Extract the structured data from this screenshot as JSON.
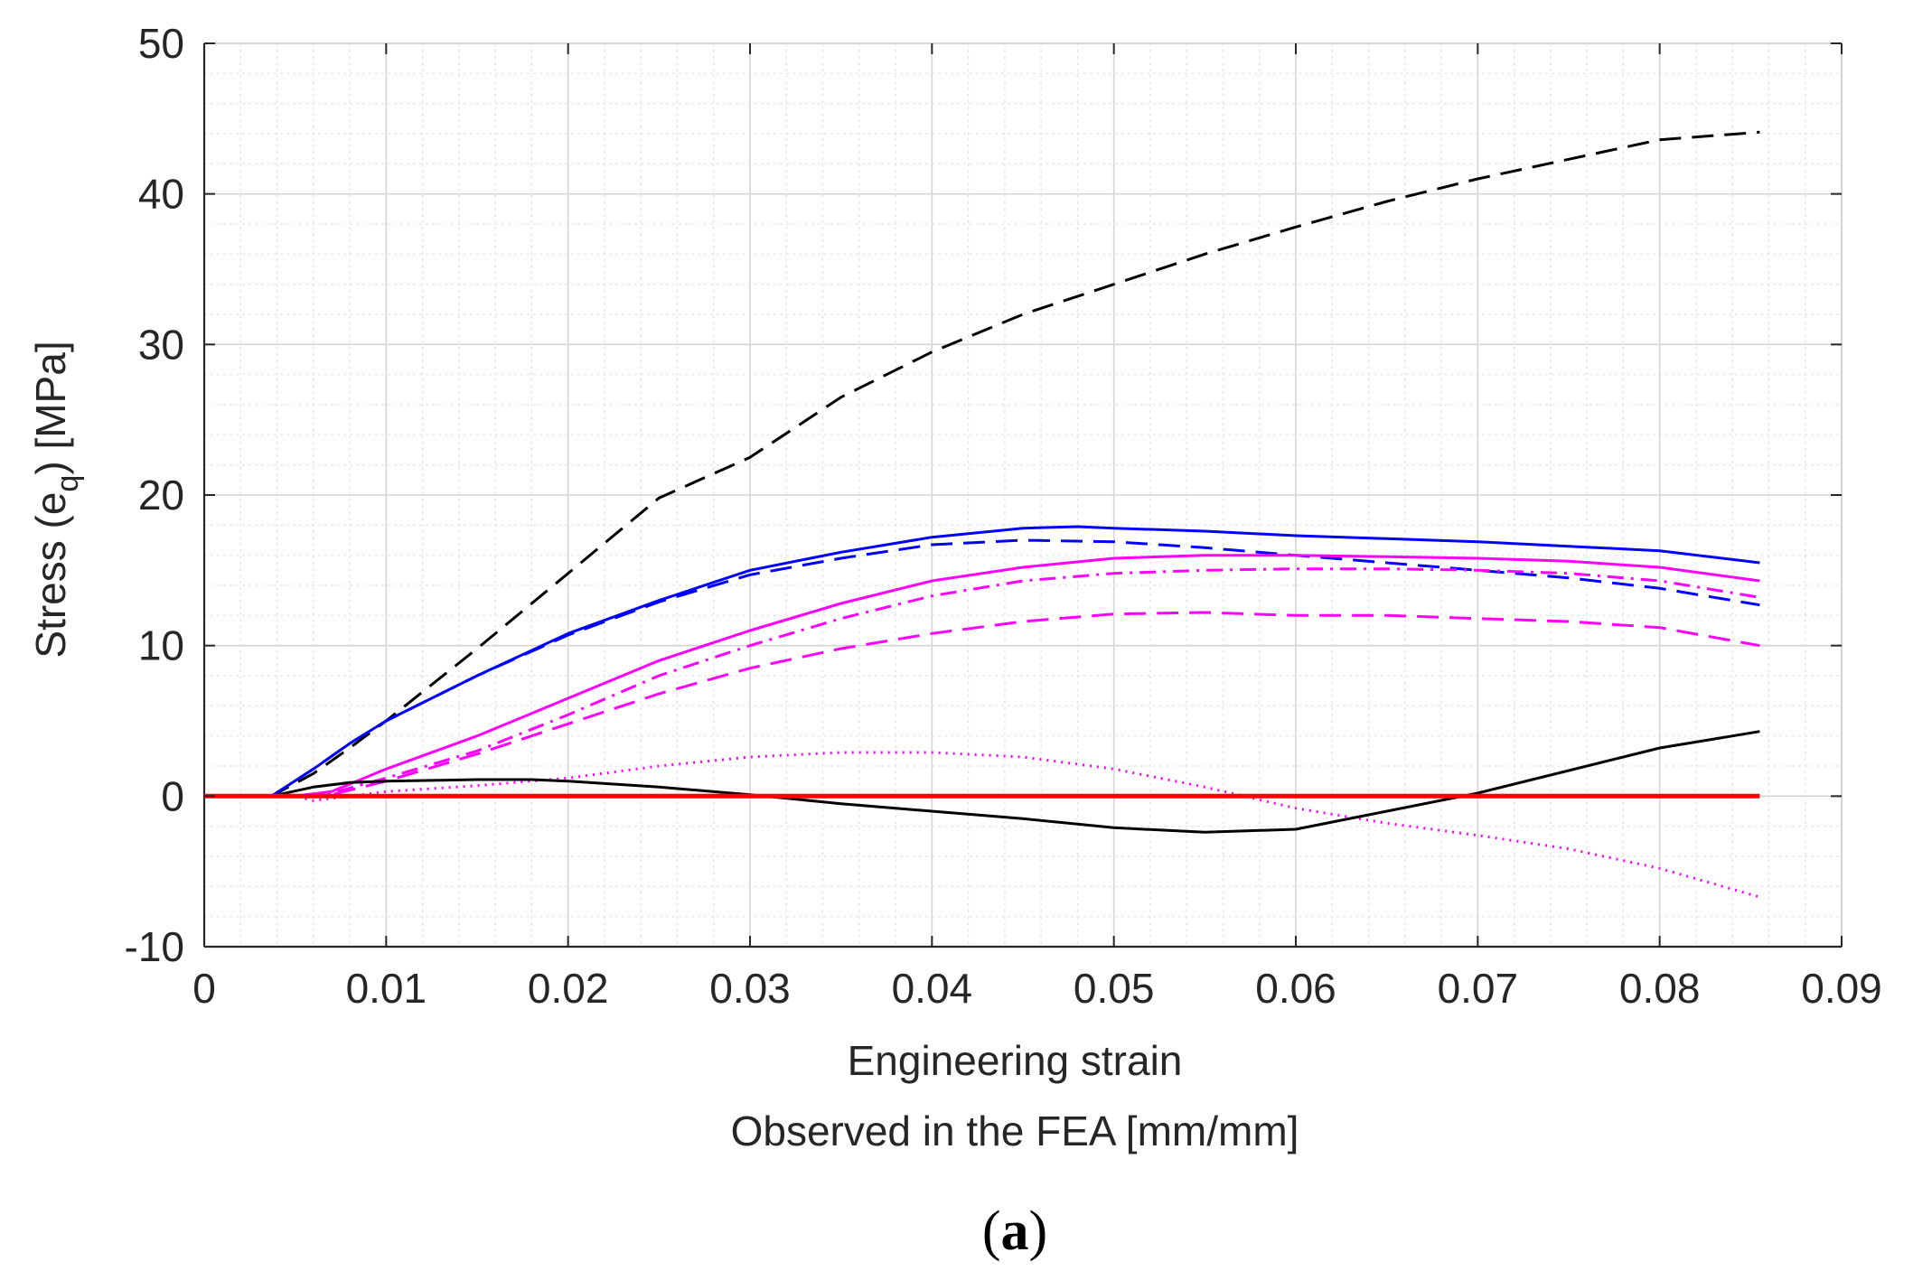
{
  "chart_data": {
    "type": "line",
    "xlabel": "Engineering strain",
    "xlabel_line2": "Observed in the FEA [mm/mm]",
    "ylabel": "Stress (e",
    "ylabel_sub": "q",
    "ylabel_end": ") [MPa]",
    "xlim": [
      0,
      0.09
    ],
    "ylim": [
      -10,
      50
    ],
    "x_ticks": [
      0,
      0.01,
      0.02,
      0.03,
      0.04,
      0.05,
      0.06,
      0.07,
      0.08,
      0.09
    ],
    "x_tick_labels": [
      "0",
      "0.01",
      "0.02",
      "0.03",
      "0.04",
      "0.05",
      "0.06",
      "0.07",
      "0.08",
      "0.09"
    ],
    "y_ticks": [
      -10,
      0,
      10,
      20,
      30,
      40,
      50
    ],
    "y_tick_labels": [
      "-10",
      "0",
      "10",
      "20",
      "30",
      "40",
      "50"
    ],
    "grid": true,
    "minor_grid": true,
    "caption_open": "(",
    "caption_letter": "a",
    "caption_close": ")",
    "series": [
      {
        "name": "black dashed",
        "color": "#000000",
        "dash": "24 12",
        "x": [
          0,
          0.0037,
          0.006,
          0.008,
          0.01,
          0.015,
          0.02,
          0.025,
          0.03,
          0.035,
          0.04,
          0.045,
          0.05,
          0.055,
          0.06,
          0.065,
          0.07,
          0.075,
          0.08,
          0.0855
        ],
        "y": [
          0,
          0,
          1.5,
          3.2,
          5,
          9.8,
          14.8,
          19.8,
          22.5,
          26.5,
          29.5,
          32,
          34,
          36,
          37.8,
          39.5,
          41,
          42.3,
          43.6,
          44.1
        ]
      },
      {
        "name": "blue solid",
        "color": "#0000ff",
        "dash": "",
        "x": [
          0,
          0.0037,
          0.006,
          0.008,
          0.01,
          0.015,
          0.02,
          0.025,
          0.03,
          0.035,
          0.04,
          0.045,
          0.048,
          0.05,
          0.055,
          0.06,
          0.065,
          0.07,
          0.075,
          0.08,
          0.0855
        ],
        "y": [
          0,
          0,
          1.8,
          3.5,
          5,
          8,
          10.8,
          13,
          15,
          16.2,
          17.2,
          17.8,
          17.9,
          17.8,
          17.6,
          17.3,
          17.1,
          16.9,
          16.6,
          16.3,
          15.5
        ]
      },
      {
        "name": "blue dashed",
        "color": "#0000ff",
        "dash": "24 12",
        "x": [
          0,
          0.0037,
          0.006,
          0.008,
          0.01,
          0.015,
          0.02,
          0.025,
          0.03,
          0.035,
          0.04,
          0.045,
          0.05,
          0.055,
          0.06,
          0.065,
          0.07,
          0.075,
          0.08,
          0.0855
        ],
        "y": [
          0,
          0,
          1.8,
          3.5,
          5,
          8,
          10.7,
          12.9,
          14.7,
          15.8,
          16.7,
          17,
          16.9,
          16.5,
          16,
          15.5,
          15,
          14.5,
          13.8,
          12.7
        ]
      },
      {
        "name": "magenta solid",
        "color": "#ff00ff",
        "dash": "",
        "x": [
          0,
          0.005,
          0.007,
          0.01,
          0.015,
          0.02,
          0.025,
          0.03,
          0.035,
          0.04,
          0.045,
          0.05,
          0.055,
          0.06,
          0.065,
          0.07,
          0.075,
          0.08,
          0.0855
        ],
        "y": [
          0,
          0,
          0.3,
          1.8,
          4,
          6.5,
          9,
          11,
          12.8,
          14.3,
          15.2,
          15.8,
          16,
          16,
          15.9,
          15.8,
          15.6,
          15.2,
          14.3
        ]
      },
      {
        "name": "magenta dash-dot",
        "color": "#ff00ff",
        "dash": "18 8 3 8",
        "x": [
          0,
          0.005,
          0.007,
          0.01,
          0.015,
          0.02,
          0.025,
          0.03,
          0.035,
          0.04,
          0.045,
          0.05,
          0.055,
          0.06,
          0.065,
          0.07,
          0.075,
          0.08,
          0.0855
        ],
        "y": [
          0,
          0,
          0.2,
          1.2,
          3,
          5.4,
          8,
          10,
          11.8,
          13.3,
          14.3,
          14.8,
          15,
          15.1,
          15.1,
          15,
          14.8,
          14.3,
          13.2
        ]
      },
      {
        "name": "magenta dashed",
        "color": "#ff00ff",
        "dash": "24 12",
        "x": [
          0,
          0.005,
          0.007,
          0.01,
          0.015,
          0.02,
          0.025,
          0.03,
          0.035,
          0.04,
          0.045,
          0.05,
          0.055,
          0.06,
          0.065,
          0.07,
          0.075,
          0.08,
          0.0855
        ],
        "y": [
          0,
          0,
          0.1,
          1,
          2.8,
          4.8,
          6.8,
          8.5,
          9.8,
          10.8,
          11.6,
          12.1,
          12.2,
          12,
          12,
          11.8,
          11.6,
          11.2,
          10
        ]
      },
      {
        "name": "magenta dotted",
        "color": "#ff00ff",
        "dash": "2 6",
        "x": [
          0,
          0.005,
          0.006,
          0.008,
          0.01,
          0.015,
          0.02,
          0.025,
          0.03,
          0.035,
          0.04,
          0.045,
          0.05,
          0.055,
          0.06,
          0.065,
          0.07,
          0.075,
          0.08,
          0.0855
        ],
        "y": [
          0,
          0,
          -0.3,
          0,
          0.3,
          0.7,
          1.2,
          2,
          2.6,
          2.9,
          2.9,
          2.6,
          1.8,
          0.6,
          -0.8,
          -1.8,
          -2.6,
          -3.5,
          -4.8,
          -6.7
        ]
      },
      {
        "name": "black solid",
        "color": "#000000",
        "dash": "",
        "x": [
          0,
          0.0037,
          0.006,
          0.008,
          0.01,
          0.015,
          0.018,
          0.02,
          0.025,
          0.03,
          0.035,
          0.04,
          0.045,
          0.05,
          0.055,
          0.06,
          0.065,
          0.07,
          0.075,
          0.08,
          0.0855
        ],
        "y": [
          0,
          0,
          0.6,
          0.9,
          1,
          1.1,
          1.1,
          1,
          0.6,
          0.1,
          -0.5,
          -1,
          -1.5,
          -2.1,
          -2.4,
          -2.2,
          -1,
          0.2,
          1.7,
          3.2,
          4.3
        ]
      },
      {
        "name": "red solid",
        "color": "#ff0000",
        "dash": "",
        "width": 5,
        "x": [
          0,
          0.0855
        ],
        "y": [
          0,
          0
        ]
      }
    ]
  }
}
